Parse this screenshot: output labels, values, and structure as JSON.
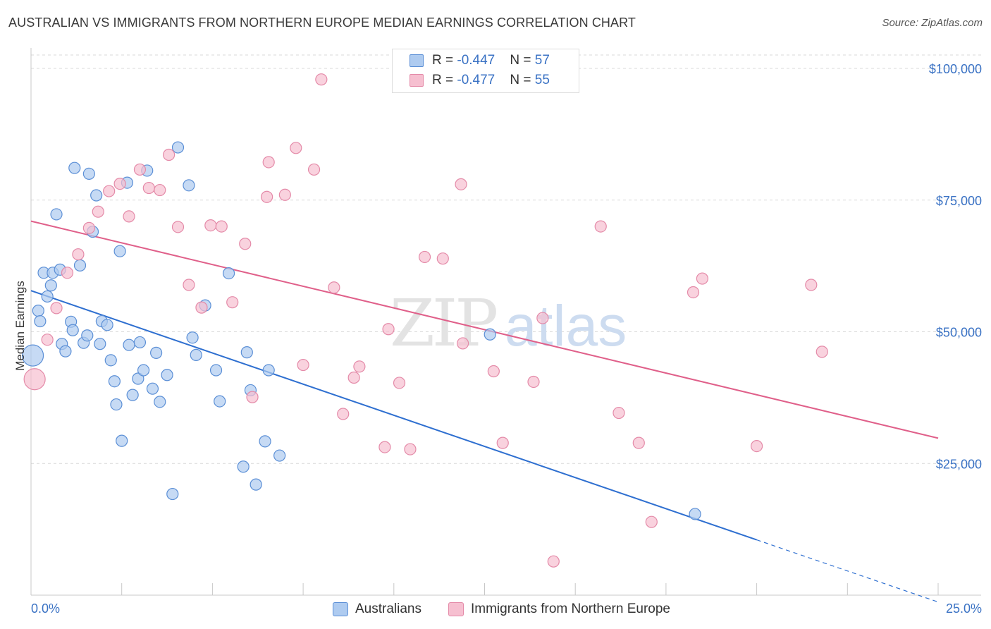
{
  "header": {
    "title": "AUSTRALIAN VS IMMIGRANTS FROM NORTHERN EUROPE MEDIAN EARNINGS CORRELATION CHART",
    "source": "Source: ZipAtlas.com"
  },
  "watermark": {
    "zip": "ZIP",
    "atlas": "atlas"
  },
  "colors": {
    "blue_fill": "#aecbf0",
    "blue_stroke": "#5b8fd6",
    "blue_line": "#2e6fd0",
    "pink_fill": "#f6bfd0",
    "pink_stroke": "#e48aa8",
    "pink_line": "#e0608a",
    "tick_text": "#3a72c4",
    "grid": "#d9d9d9"
  },
  "legend": {
    "rows": [
      {
        "r_label": "R = ",
        "r_value": "-0.447",
        "n_label": "N = ",
        "n_value": "57",
        "series": "australians"
      },
      {
        "r_label": "R = ",
        "r_value": "-0.477",
        "n_label": "N = ",
        "n_value": "55",
        "series": "immigrants"
      }
    ]
  },
  "bottom_legend": [
    {
      "label": "Australians",
      "series": "australians"
    },
    {
      "label": "Immigrants from Northern Europe",
      "series": "immigrants"
    }
  ],
  "chart_data": {
    "type": "scatter",
    "title": "AUSTRALIAN VS IMMIGRANTS FROM NORTHERN EUROPE MEDIAN EARNINGS CORRELATION CHART",
    "xlabel": "",
    "ylabel": "Median Earnings",
    "xlim": [
      0,
      25
    ],
    "ylim": [
      0,
      102000
    ],
    "x_tick_labels": [
      {
        "value": 0,
        "label": "0.0%"
      },
      {
        "value": 25,
        "label": "25.0%"
      }
    ],
    "y_ticks": [
      {
        "value": 25000,
        "label": "$25,000"
      },
      {
        "value": 50000,
        "label": "$50,000"
      },
      {
        "value": 75000,
        "label": "$75,000"
      },
      {
        "value": 100000,
        "label": "$100,000"
      }
    ],
    "x_minor_ticks": [
      2.5,
      5,
      7.5,
      10,
      12.5,
      15,
      17.5,
      20,
      22.5,
      25
    ],
    "series": [
      {
        "name": "Australians",
        "key": "australians",
        "r": -0.447,
        "n": 57,
        "trend": {
          "x0": 0,
          "y0": 57800,
          "x1": 20,
          "y1": 10500,
          "dash_to_x": 25,
          "dash_to_y": -1300
        },
        "points": [
          {
            "x": 0.05,
            "y": 45500,
            "big": true
          },
          {
            "x": 0.2,
            "y": 54000
          },
          {
            "x": 0.25,
            "y": 52000
          },
          {
            "x": 0.35,
            "y": 61200
          },
          {
            "x": 0.45,
            "y": 56700
          },
          {
            "x": 0.55,
            "y": 58800
          },
          {
            "x": 0.6,
            "y": 61200
          },
          {
            "x": 0.7,
            "y": 72300
          },
          {
            "x": 0.8,
            "y": 61800
          },
          {
            "x": 0.85,
            "y": 47700
          },
          {
            "x": 0.95,
            "y": 46300
          },
          {
            "x": 1.1,
            "y": 51900
          },
          {
            "x": 1.15,
            "y": 50300
          },
          {
            "x": 1.2,
            "y": 81100
          },
          {
            "x": 1.35,
            "y": 62600
          },
          {
            "x": 1.45,
            "y": 47900
          },
          {
            "x": 1.55,
            "y": 49300
          },
          {
            "x": 1.6,
            "y": 80000
          },
          {
            "x": 1.7,
            "y": 69000
          },
          {
            "x": 1.8,
            "y": 75900
          },
          {
            "x": 1.9,
            "y": 47700
          },
          {
            "x": 1.95,
            "y": 52000
          },
          {
            "x": 2.1,
            "y": 51300
          },
          {
            "x": 2.2,
            "y": 44600
          },
          {
            "x": 2.3,
            "y": 40600
          },
          {
            "x": 2.35,
            "y": 36200
          },
          {
            "x": 2.45,
            "y": 65300
          },
          {
            "x": 2.5,
            "y": 29300
          },
          {
            "x": 2.65,
            "y": 78300
          },
          {
            "x": 2.7,
            "y": 47500
          },
          {
            "x": 2.8,
            "y": 38000
          },
          {
            "x": 2.95,
            "y": 41100
          },
          {
            "x": 3.0,
            "y": 48000
          },
          {
            "x": 3.1,
            "y": 42700
          },
          {
            "x": 3.2,
            "y": 80600
          },
          {
            "x": 3.35,
            "y": 39200
          },
          {
            "x": 3.45,
            "y": 46000
          },
          {
            "x": 3.55,
            "y": 36700
          },
          {
            "x": 3.75,
            "y": 41800
          },
          {
            "x": 3.9,
            "y": 19200
          },
          {
            "x": 4.05,
            "y": 85000
          },
          {
            "x": 4.35,
            "y": 77800
          },
          {
            "x": 4.45,
            "y": 48900
          },
          {
            "x": 4.55,
            "y": 45600
          },
          {
            "x": 4.8,
            "y": 55000
          },
          {
            "x": 5.1,
            "y": 42700
          },
          {
            "x": 5.2,
            "y": 36800
          },
          {
            "x": 5.45,
            "y": 61100
          },
          {
            "x": 5.85,
            "y": 24400
          },
          {
            "x": 5.95,
            "y": 46100
          },
          {
            "x": 6.05,
            "y": 38900
          },
          {
            "x": 6.2,
            "y": 21000
          },
          {
            "x": 6.45,
            "y": 29200
          },
          {
            "x": 6.55,
            "y": 42700
          },
          {
            "x": 6.85,
            "y": 26500
          },
          {
            "x": 12.65,
            "y": 49500
          },
          {
            "x": 18.3,
            "y": 15400
          }
        ]
      },
      {
        "name": "Immigrants from Northern Europe",
        "key": "immigrants",
        "r": -0.477,
        "n": 55,
        "trend": {
          "x0": 0,
          "y0": 71000,
          "x1": 25,
          "y1": 29800
        },
        "points": [
          {
            "x": 0.1,
            "y": 41000,
            "big": true
          },
          {
            "x": 0.45,
            "y": 48500
          },
          {
            "x": 0.7,
            "y": 54500
          },
          {
            "x": 1.0,
            "y": 61200
          },
          {
            "x": 1.3,
            "y": 64700
          },
          {
            "x": 1.6,
            "y": 69700
          },
          {
            "x": 1.85,
            "y": 72800
          },
          {
            "x": 2.15,
            "y": 76700
          },
          {
            "x": 2.45,
            "y": 78100
          },
          {
            "x": 2.7,
            "y": 71900
          },
          {
            "x": 3.0,
            "y": 80800
          },
          {
            "x": 3.25,
            "y": 77300
          },
          {
            "x": 3.55,
            "y": 76900
          },
          {
            "x": 3.8,
            "y": 83600
          },
          {
            "x": 4.05,
            "y": 69900
          },
          {
            "x": 4.35,
            "y": 58900
          },
          {
            "x": 4.7,
            "y": 54600
          },
          {
            "x": 4.95,
            "y": 70200
          },
          {
            "x": 5.25,
            "y": 70000
          },
          {
            "x": 5.55,
            "y": 55600
          },
          {
            "x": 5.9,
            "y": 66700
          },
          {
            "x": 6.1,
            "y": 37600
          },
          {
            "x": 6.5,
            "y": 75600
          },
          {
            "x": 6.55,
            "y": 82200
          },
          {
            "x": 7.0,
            "y": 76000
          },
          {
            "x": 7.3,
            "y": 84900
          },
          {
            "x": 7.5,
            "y": 43700
          },
          {
            "x": 7.8,
            "y": 80800
          },
          {
            "x": 8.0,
            "y": 97900
          },
          {
            "x": 8.35,
            "y": 58400
          },
          {
            "x": 8.6,
            "y": 34400
          },
          {
            "x": 8.9,
            "y": 41300
          },
          {
            "x": 9.05,
            "y": 43400
          },
          {
            "x": 9.75,
            "y": 28100
          },
          {
            "x": 9.85,
            "y": 50500
          },
          {
            "x": 10.15,
            "y": 40300
          },
          {
            "x": 10.45,
            "y": 27700
          },
          {
            "x": 10.85,
            "y": 64200
          },
          {
            "x": 11.35,
            "y": 63900
          },
          {
            "x": 11.85,
            "y": 78000
          },
          {
            "x": 11.9,
            "y": 47800
          },
          {
            "x": 12.75,
            "y": 42500
          },
          {
            "x": 13.0,
            "y": 28900
          },
          {
            "x": 13.85,
            "y": 40500
          },
          {
            "x": 14.1,
            "y": 52600
          },
          {
            "x": 14.4,
            "y": 6400
          },
          {
            "x": 15.7,
            "y": 70000
          },
          {
            "x": 16.2,
            "y": 34600
          },
          {
            "x": 16.75,
            "y": 28900
          },
          {
            "x": 17.1,
            "y": 13900
          },
          {
            "x": 18.25,
            "y": 57500
          },
          {
            "x": 18.5,
            "y": 60100
          },
          {
            "x": 20.0,
            "y": 28300
          },
          {
            "x": 21.5,
            "y": 58900
          },
          {
            "x": 21.8,
            "y": 46200
          }
        ]
      }
    ]
  }
}
